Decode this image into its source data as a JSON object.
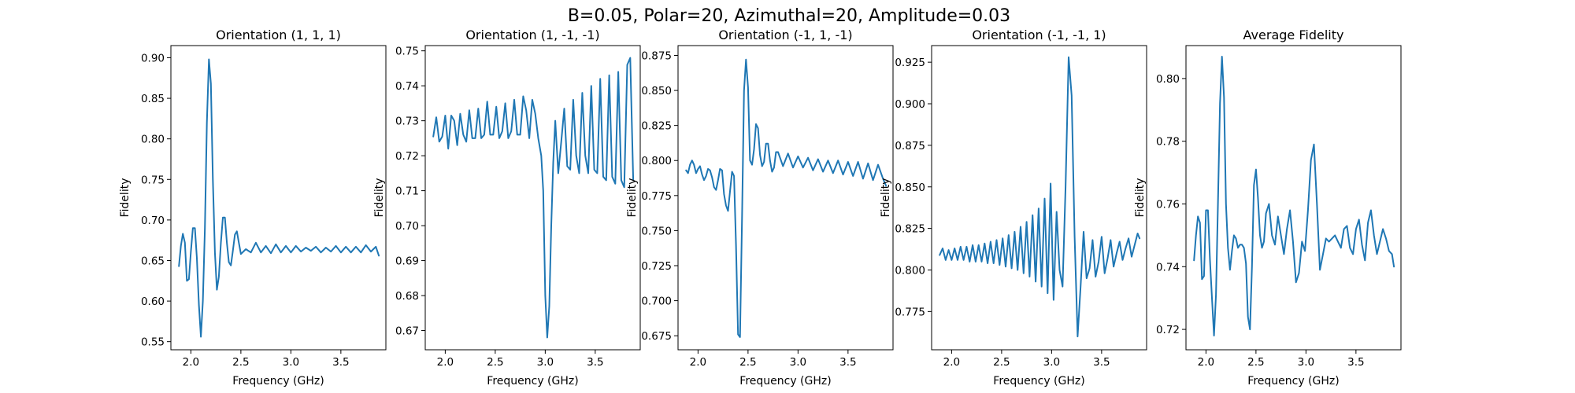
{
  "figure": {
    "suptitle": "B=0.05, Polar=20, Azimuthal=20, Amplitude=0.03"
  },
  "chart_data": [
    {
      "type": "line",
      "title": "Orientation (1, 1, 1)",
      "xlabel": "Frequency (GHz)",
      "ylabel": "Fidelity",
      "xlim": [
        1.8,
        3.95
      ],
      "ylim": [
        0.54,
        0.915
      ],
      "xticks": [
        "2.0",
        "2.5",
        "3.0",
        "3.5"
      ],
      "yticks": [
        "0.55",
        "0.60",
        "0.65",
        "0.70",
        "0.75",
        "0.80",
        "0.85",
        "0.90"
      ],
      "color": "#1f77b4",
      "series": [
        {
          "x": [
            1.88,
            1.9,
            1.92,
            1.94,
            1.96,
            1.98,
            2.0,
            2.02,
            2.04,
            2.06,
            2.08,
            2.1,
            2.12,
            2.14,
            2.16,
            2.18,
            2.2,
            2.22,
            2.24,
            2.26,
            2.28,
            2.3,
            2.32,
            2.34,
            2.36,
            2.38,
            2.4,
            2.42,
            2.44,
            2.46,
            2.48,
            2.5,
            2.55,
            2.6,
            2.65,
            2.7,
            2.75,
            2.8,
            2.85,
            2.9,
            2.95,
            3.0,
            3.05,
            3.1,
            3.15,
            3.2,
            3.25,
            3.3,
            3.35,
            3.4,
            3.45,
            3.5,
            3.55,
            3.6,
            3.65,
            3.7,
            3.75,
            3.8,
            3.85,
            3.88
          ],
          "y": [
            0.643,
            0.668,
            0.683,
            0.672,
            0.625,
            0.627,
            0.661,
            0.69,
            0.69,
            0.653,
            0.595,
            0.556,
            0.6,
            0.69,
            0.82,
            0.898,
            0.868,
            0.75,
            0.66,
            0.614,
            0.63,
            0.672,
            0.703,
            0.703,
            0.672,
            0.648,
            0.644,
            0.662,
            0.682,
            0.686,
            0.672,
            0.658,
            0.664,
            0.66,
            0.672,
            0.66,
            0.668,
            0.659,
            0.67,
            0.66,
            0.668,
            0.66,
            0.668,
            0.661,
            0.666,
            0.662,
            0.667,
            0.66,
            0.666,
            0.661,
            0.668,
            0.66,
            0.667,
            0.66,
            0.667,
            0.66,
            0.669,
            0.661,
            0.667,
            0.656
          ]
        }
      ]
    },
    {
      "type": "line",
      "title": "Orientation (1, -1, -1)",
      "xlabel": "Frequency (GHz)",
      "ylabel": "Fidelity",
      "xlim": [
        1.8,
        3.95
      ],
      "ylim": [
        0.6645,
        0.7515
      ],
      "xticks": [
        "2.0",
        "2.5",
        "3.0",
        "3.5"
      ],
      "yticks": [
        "0.67",
        "0.68",
        "0.69",
        "0.70",
        "0.71",
        "0.72",
        "0.73",
        "0.74",
        "0.75"
      ],
      "color": "#1f77b4",
      "series": [
        {
          "x": [
            1.88,
            1.91,
            1.94,
            1.97,
            2.0,
            2.03,
            2.06,
            2.09,
            2.12,
            2.15,
            2.18,
            2.21,
            2.24,
            2.27,
            2.3,
            2.33,
            2.36,
            2.39,
            2.42,
            2.45,
            2.48,
            2.51,
            2.54,
            2.57,
            2.6,
            2.63,
            2.66,
            2.69,
            2.72,
            2.75,
            2.78,
            2.81,
            2.84,
            2.87,
            2.9,
            2.93,
            2.96,
            2.98,
            3.0,
            3.02,
            3.04,
            3.06,
            3.08,
            3.1,
            3.13,
            3.16,
            3.19,
            3.22,
            3.25,
            3.28,
            3.31,
            3.34,
            3.37,
            3.4,
            3.43,
            3.46,
            3.49,
            3.52,
            3.55,
            3.58,
            3.61,
            3.64,
            3.67,
            3.7,
            3.73,
            3.76,
            3.79,
            3.82,
            3.85,
            3.88
          ],
          "y": [
            0.7255,
            0.731,
            0.724,
            0.7255,
            0.7315,
            0.722,
            0.7315,
            0.73,
            0.723,
            0.732,
            0.726,
            0.724,
            0.733,
            0.725,
            0.725,
            0.7335,
            0.725,
            0.726,
            0.7355,
            0.726,
            0.726,
            0.734,
            0.725,
            0.727,
            0.735,
            0.725,
            0.727,
            0.736,
            0.726,
            0.726,
            0.737,
            0.733,
            0.725,
            0.736,
            0.732,
            0.725,
            0.72,
            0.71,
            0.68,
            0.668,
            0.677,
            0.7,
            0.718,
            0.73,
            0.715,
            0.724,
            0.7335,
            0.717,
            0.716,
            0.736,
            0.72,
            0.715,
            0.738,
            0.72,
            0.715,
            0.74,
            0.716,
            0.715,
            0.742,
            0.714,
            0.713,
            0.743,
            0.714,
            0.712,
            0.744,
            0.713,
            0.711,
            0.746,
            0.748,
            0.713
          ]
        }
      ]
    },
    {
      "type": "line",
      "title": "Orientation (-1, 1, -1)",
      "xlabel": "Frequency (GHz)",
      "ylabel": "Fidelity",
      "xlim": [
        1.8,
        3.95
      ],
      "ylim": [
        0.665,
        0.882
      ],
      "xticks": [
        "2.0",
        "2.5",
        "3.0",
        "3.5"
      ],
      "yticks": [
        "0.675",
        "0.700",
        "0.725",
        "0.750",
        "0.775",
        "0.800",
        "0.825",
        "0.850",
        "0.875"
      ],
      "color": "#1f77b4",
      "series": [
        {
          "x": [
            1.88,
            1.9,
            1.92,
            1.94,
            1.96,
            1.98,
            2.0,
            2.02,
            2.04,
            2.06,
            2.08,
            2.1,
            2.12,
            2.14,
            2.16,
            2.18,
            2.2,
            2.22,
            2.24,
            2.26,
            2.28,
            2.3,
            2.32,
            2.34,
            2.36,
            2.38,
            2.4,
            2.42,
            2.44,
            2.46,
            2.48,
            2.5,
            2.52,
            2.54,
            2.56,
            2.58,
            2.6,
            2.62,
            2.64,
            2.66,
            2.68,
            2.7,
            2.72,
            2.74,
            2.76,
            2.78,
            2.8,
            2.85,
            2.9,
            2.95,
            3.0,
            3.05,
            3.1,
            3.15,
            3.2,
            3.25,
            3.3,
            3.35,
            3.4,
            3.45,
            3.5,
            3.55,
            3.6,
            3.65,
            3.7,
            3.75,
            3.8,
            3.85,
            3.88
          ],
          "y": [
            0.793,
            0.791,
            0.797,
            0.8,
            0.797,
            0.791,
            0.794,
            0.796,
            0.79,
            0.786,
            0.789,
            0.794,
            0.793,
            0.788,
            0.781,
            0.779,
            0.786,
            0.794,
            0.793,
            0.776,
            0.768,
            0.764,
            0.778,
            0.792,
            0.789,
            0.74,
            0.676,
            0.674,
            0.76,
            0.85,
            0.872,
            0.852,
            0.8,
            0.797,
            0.808,
            0.826,
            0.823,
            0.804,
            0.796,
            0.799,
            0.812,
            0.812,
            0.8,
            0.792,
            0.795,
            0.806,
            0.806,
            0.796,
            0.805,
            0.795,
            0.803,
            0.795,
            0.802,
            0.793,
            0.801,
            0.792,
            0.8,
            0.791,
            0.8,
            0.79,
            0.799,
            0.789,
            0.799,
            0.787,
            0.798,
            0.786,
            0.797,
            0.787,
            0.782
          ]
        }
      ]
    },
    {
      "type": "line",
      "title": "Orientation (-1, -1, 1)",
      "xlabel": "Frequency (GHz)",
      "ylabel": "Fidelity",
      "xlim": [
        1.8,
        3.95
      ],
      "ylim": [
        0.752,
        0.935
      ],
      "xticks": [
        "2.0",
        "2.5",
        "3.0",
        "3.5"
      ],
      "yticks": [
        "0.775",
        "0.800",
        "0.825",
        "0.850",
        "0.875",
        "0.900",
        "0.925"
      ],
      "color": "#1f77b4",
      "series": [
        {
          "x": [
            1.88,
            1.91,
            1.94,
            1.97,
            2.0,
            2.03,
            2.06,
            2.09,
            2.12,
            2.15,
            2.18,
            2.21,
            2.24,
            2.27,
            2.3,
            2.33,
            2.36,
            2.39,
            2.42,
            2.45,
            2.48,
            2.51,
            2.54,
            2.57,
            2.6,
            2.63,
            2.66,
            2.69,
            2.72,
            2.75,
            2.78,
            2.81,
            2.84,
            2.87,
            2.9,
            2.93,
            2.96,
            2.99,
            3.02,
            3.05,
            3.08,
            3.11,
            3.14,
            3.17,
            3.2,
            3.23,
            3.26,
            3.29,
            3.32,
            3.35,
            3.38,
            3.41,
            3.44,
            3.47,
            3.5,
            3.53,
            3.56,
            3.59,
            3.62,
            3.65,
            3.68,
            3.71,
            3.74,
            3.77,
            3.8,
            3.83,
            3.86,
            3.88
          ],
          "y": [
            0.809,
            0.813,
            0.806,
            0.812,
            0.806,
            0.813,
            0.806,
            0.814,
            0.806,
            0.814,
            0.805,
            0.815,
            0.805,
            0.815,
            0.805,
            0.816,
            0.804,
            0.817,
            0.804,
            0.818,
            0.803,
            0.819,
            0.802,
            0.821,
            0.801,
            0.823,
            0.8,
            0.826,
            0.798,
            0.829,
            0.796,
            0.833,
            0.793,
            0.837,
            0.79,
            0.843,
            0.786,
            0.852,
            0.782,
            0.835,
            0.8,
            0.79,
            0.85,
            0.928,
            0.905,
            0.82,
            0.76,
            0.79,
            0.823,
            0.795,
            0.801,
            0.818,
            0.796,
            0.805,
            0.82,
            0.798,
            0.807,
            0.818,
            0.802,
            0.81,
            0.817,
            0.806,
            0.813,
            0.819,
            0.808,
            0.815,
            0.822,
            0.819
          ]
        }
      ]
    },
    {
      "type": "line",
      "title": "Average Fidelity",
      "xlabel": "Frequency (GHz)",
      "ylabel": "Fidelity",
      "xlim": [
        1.8,
        3.95
      ],
      "ylim": [
        0.7135,
        0.8105
      ],
      "xticks": [
        "2.0",
        "2.5",
        "3.0",
        "3.5"
      ],
      "yticks": [
        "0.72",
        "0.74",
        "0.76",
        "0.78",
        "0.80"
      ],
      "color": "#1f77b4",
      "series": [
        {
          "x": [
            1.88,
            1.9,
            1.92,
            1.94,
            1.96,
            1.98,
            2.0,
            2.02,
            2.04,
            2.06,
            2.08,
            2.1,
            2.12,
            2.14,
            2.16,
            2.18,
            2.2,
            2.22,
            2.24,
            2.26,
            2.28,
            2.3,
            2.32,
            2.34,
            2.36,
            2.38,
            2.4,
            2.42,
            2.44,
            2.46,
            2.48,
            2.5,
            2.52,
            2.54,
            2.56,
            2.58,
            2.6,
            2.63,
            2.66,
            2.69,
            2.72,
            2.75,
            2.78,
            2.81,
            2.84,
            2.87,
            2.9,
            2.93,
            2.96,
            2.99,
            3.02,
            3.05,
            3.08,
            3.11,
            3.14,
            3.17,
            3.2,
            3.23,
            3.26,
            3.29,
            3.32,
            3.35,
            3.38,
            3.41,
            3.44,
            3.47,
            3.5,
            3.53,
            3.56,
            3.59,
            3.62,
            3.65,
            3.68,
            3.71,
            3.74,
            3.77,
            3.8,
            3.83,
            3.86,
            3.88
          ],
          "y": [
            0.742,
            0.75,
            0.756,
            0.754,
            0.736,
            0.737,
            0.758,
            0.758,
            0.742,
            0.73,
            0.718,
            0.731,
            0.76,
            0.792,
            0.807,
            0.794,
            0.76,
            0.746,
            0.739,
            0.745,
            0.75,
            0.749,
            0.746,
            0.747,
            0.747,
            0.746,
            0.741,
            0.724,
            0.72,
            0.74,
            0.766,
            0.771,
            0.762,
            0.75,
            0.746,
            0.748,
            0.757,
            0.76,
            0.75,
            0.747,
            0.756,
            0.75,
            0.744,
            0.752,
            0.758,
            0.748,
            0.735,
            0.738,
            0.748,
            0.745,
            0.758,
            0.774,
            0.779,
            0.76,
            0.739,
            0.744,
            0.749,
            0.748,
            0.749,
            0.75,
            0.748,
            0.746,
            0.752,
            0.753,
            0.746,
            0.744,
            0.752,
            0.755,
            0.747,
            0.742,
            0.754,
            0.758,
            0.75,
            0.744,
            0.748,
            0.752,
            0.749,
            0.745,
            0.744,
            0.74
          ]
        }
      ]
    }
  ]
}
